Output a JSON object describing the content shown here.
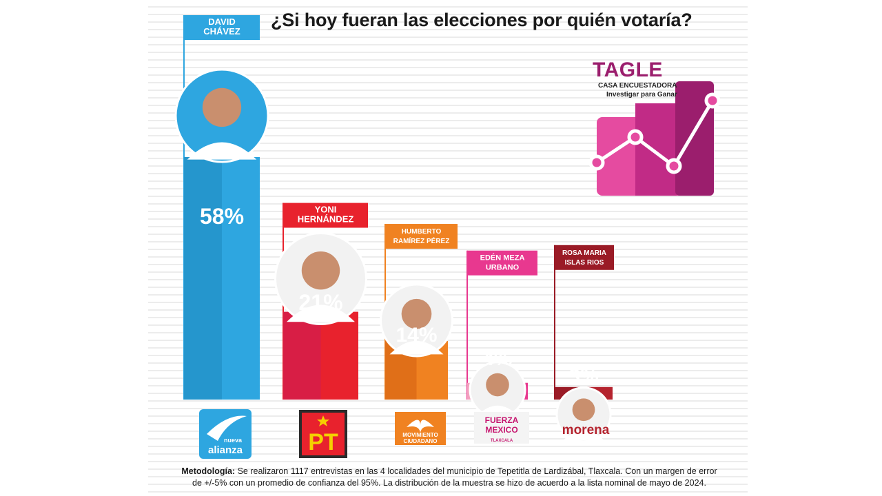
{
  "title": "¿Si hoy fueran las elecciones por quién votaría?",
  "brand": {
    "name": "TAGLE",
    "subtitle": "CASA ENCUESTADORA",
    "tagline": "Investigar para Ganar",
    "colors": [
      "#e54ba0",
      "#c12b86",
      "#9b1e6d",
      "#7a1552"
    ]
  },
  "methodology": {
    "label": "Metodología:",
    "text": " Se realizaron 1117 entrevistas  en las 4 localidades del municipio de Tepetitla de Lardizábal, Tlaxcala. Con un margen de error de +/-5%  con un promedio de confianza del 95%. La distribución de la  muestra se hizo de acuerdo a la lista nominal de mayo de 2024."
  },
  "chart_data": {
    "type": "bar",
    "categories": [
      "DAVID CHÁVEZ",
      "YONI HERNÁNDEZ",
      "HUMBERTO RAMÍREZ PÉREZ",
      "EDÉN MEZA URBANO",
      "ROSA MARIA ISLAS RIOS"
    ],
    "values": [
      58,
      21,
      14,
      4,
      3
    ],
    "value_labels": [
      "58%",
      "21%",
      "14%",
      "4%",
      "3%"
    ],
    "candidates": [
      {
        "name_lines": [
          "DAVID",
          "CHÁVEZ"
        ],
        "label": "58%",
        "party": [
          "nueva",
          "alianza"
        ],
        "color": "#2ea6e0",
        "dark": "#2596cd",
        "tag": "#2ea6e0"
      },
      {
        "name_lines": [
          "YONI",
          "HERNÁNDEZ"
        ],
        "label": "21%",
        "party": [
          "PT"
        ],
        "color": "#e8222d",
        "dark": "#d81e45",
        "tag": "#e8222d"
      },
      {
        "name_lines": [
          "HUMBERTO",
          "RAMÍREZ PÉREZ"
        ],
        "label": "14%",
        "party": [
          "MOVIMIENTO",
          "CIUDADANO"
        ],
        "color": "#f08221",
        "dark": "#e06f18",
        "tag": "#f08221"
      },
      {
        "name_lines": [
          "EDÉN MEZA",
          "URBANO"
        ],
        "label": "4%",
        "party": [
          "FUERZA",
          "MEXICO",
          "TLAXCALA"
        ],
        "color": "#e8388f",
        "dark": "#f3a0be",
        "tag": "#e8388f"
      },
      {
        "name_lines": [
          "ROSA MARIA",
          "ISLAS RIOS"
        ],
        "label": "3%",
        "party": [
          "morena"
        ],
        "color": "#b5232e",
        "dark": "#9a1b26",
        "tag": "#9a1b26"
      }
    ]
  }
}
